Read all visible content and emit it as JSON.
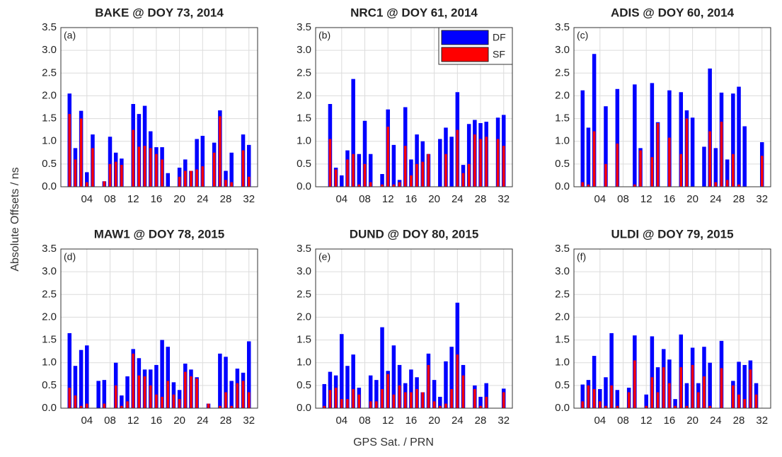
{
  "ylabel": "Absolute Offsets / ns",
  "xlabel": "GPS Sat. / PRN",
  "chart_data": [
    {
      "type": "bar",
      "title": "BAKE @ DOY 73, 2014",
      "annotation": "(a)",
      "x": [
        1,
        2,
        3,
        4,
        5,
        6,
        7,
        8,
        9,
        10,
        11,
        12,
        13,
        14,
        15,
        16,
        17,
        18,
        19,
        20,
        21,
        22,
        23,
        24,
        25,
        26,
        27,
        28,
        29,
        30,
        31,
        32
      ],
      "series": [
        {
          "name": "DF",
          "color": "#0000ff",
          "values": [
            2.05,
            0.85,
            1.67,
            0.32,
            1.15,
            null,
            0.12,
            1.1,
            0.75,
            0.62,
            null,
            1.82,
            1.6,
            1.78,
            1.22,
            0.87,
            0.87,
            0.3,
            null,
            0.42,
            0.6,
            0.35,
            1.05,
            1.12,
            null,
            0.97,
            1.68,
            0.35,
            0.75,
            null,
            1.15,
            0.92
          ]
        },
        {
          "name": "SF",
          "color": "#ff0000",
          "values": [
            1.6,
            0.6,
            1.5,
            0.1,
            0.85,
            null,
            0.12,
            0.5,
            0.55,
            0.48,
            null,
            1.25,
            0.88,
            0.9,
            0.85,
            0.72,
            0.6,
            0.0,
            null,
            0.22,
            0.35,
            0.35,
            0.38,
            0.45,
            null,
            0.75,
            1.55,
            0.15,
            0.1,
            null,
            0.8,
            0.22
          ]
        }
      ],
      "xlim": [
        -0.5,
        33.5
      ],
      "xticks": [
        {
          "value": 4,
          "label": "04"
        },
        {
          "value": 8,
          "label": "08"
        },
        12,
        16,
        20,
        24,
        28,
        32
      ],
      "ylim": [
        0,
        3.5
      ],
      "yticks": [
        {
          "value": 0,
          "label": "0.0"
        },
        0.5,
        {
          "value": 1,
          "label": "1.0"
        },
        1.5,
        {
          "value": 2,
          "label": "2.0"
        },
        2.5,
        {
          "value": 3,
          "label": "3.0"
        },
        3.5
      ],
      "grid": true
    },
    {
      "type": "bar",
      "title": "NRC1 @ DOY 61, 2014",
      "annotation": "(b)",
      "legend": "upper right",
      "x": [
        1,
        2,
        3,
        4,
        5,
        6,
        7,
        8,
        9,
        10,
        11,
        12,
        13,
        14,
        15,
        16,
        17,
        18,
        19,
        20,
        21,
        22,
        23,
        24,
        25,
        26,
        27,
        28,
        29,
        30,
        31,
        32
      ],
      "series": [
        {
          "name": "DF",
          "color": "#0000ff",
          "values": [
            null,
            1.82,
            0.42,
            0.25,
            0.8,
            2.37,
            0.72,
            1.45,
            0.72,
            null,
            0.28,
            1.7,
            0.92,
            0.15,
            1.75,
            0.6,
            1.15,
            1.0,
            0.72,
            null,
            1.05,
            1.3,
            1.1,
            2.08,
            0.48,
            1.38,
            1.47,
            1.4,
            1.43,
            null,
            1.52,
            1.58
          ]
        },
        {
          "name": "SF",
          "color": "#ff0000",
          "values": [
            null,
            1.05,
            0.38,
            0.0,
            0.6,
            0.72,
            0.05,
            0.5,
            0.1,
            null,
            0.05,
            1.32,
            0.05,
            0.1,
            0.9,
            0.25,
            0.5,
            0.55,
            0.72,
            null,
            0.0,
            0.72,
            0.0,
            1.25,
            0.3,
            0.5,
            1.15,
            1.05,
            1.1,
            null,
            1.05,
            0.9
          ]
        }
      ],
      "xlim": [
        -0.5,
        33.5
      ],
      "xticks": [
        {
          "value": 4,
          "label": "04"
        },
        {
          "value": 8,
          "label": "08"
        },
        12,
        16,
        20,
        24,
        28,
        32
      ],
      "ylim": [
        0,
        3.5
      ],
      "yticks": [
        {
          "value": 0,
          "label": "0.0"
        },
        0.5,
        {
          "value": 1,
          "label": "1.0"
        },
        1.5,
        {
          "value": 2,
          "label": "2.0"
        },
        2.5,
        {
          "value": 3,
          "label": "3.0"
        },
        3.5
      ],
      "grid": true
    },
    {
      "type": "bar",
      "title": "ADIS @ DOY 60, 2014",
      "annotation": "(c)",
      "x": [
        1,
        2,
        3,
        4,
        5,
        6,
        7,
        8,
        9,
        10,
        11,
        12,
        13,
        14,
        15,
        16,
        17,
        18,
        19,
        20,
        21,
        22,
        23,
        24,
        25,
        26,
        27,
        28,
        29,
        30,
        31,
        32
      ],
      "series": [
        {
          "name": "DF",
          "color": "#0000ff",
          "values": [
            2.12,
            1.3,
            2.92,
            null,
            1.77,
            null,
            2.15,
            null,
            null,
            2.25,
            0.85,
            null,
            2.28,
            1.42,
            null,
            2.12,
            null,
            2.08,
            1.68,
            1.52,
            null,
            0.88,
            2.6,
            0.85,
            2.07,
            0.6,
            2.05,
            2.2,
            1.33,
            null,
            null,
            0.98
          ]
        },
        {
          "name": "SF",
          "color": "#ff0000",
          "values": [
            0.1,
            0.05,
            1.22,
            null,
            0.5,
            null,
            0.95,
            null,
            null,
            0.05,
            0.8,
            null,
            0.65,
            1.4,
            null,
            1.08,
            null,
            0.72,
            1.5,
            0.0,
            null,
            0.0,
            1.22,
            0.1,
            1.43,
            0.15,
            0.72,
            0.05,
            0.0,
            null,
            null,
            0.68
          ]
        }
      ],
      "xlim": [
        -0.5,
        33.5
      ],
      "xticks": [
        {
          "value": 4,
          "label": "04"
        },
        {
          "value": 8,
          "label": "08"
        },
        12,
        16,
        20,
        24,
        28,
        32
      ],
      "ylim": [
        0,
        3.5
      ],
      "yticks": [
        {
          "value": 0,
          "label": "0.0"
        },
        0.5,
        {
          "value": 1,
          "label": "1.0"
        },
        1.5,
        {
          "value": 2,
          "label": "2.0"
        },
        2.5,
        {
          "value": 3,
          "label": "3.0"
        },
        3.5
      ],
      "grid": true
    },
    {
      "type": "bar",
      "title": "MAW1 @ DOY 78, 2015",
      "annotation": "(d)",
      "x": [
        1,
        2,
        3,
        4,
        5,
        6,
        7,
        8,
        9,
        10,
        11,
        12,
        13,
        14,
        15,
        16,
        17,
        18,
        19,
        20,
        21,
        22,
        23,
        24,
        25,
        26,
        27,
        28,
        29,
        30,
        31,
        32
      ],
      "series": [
        {
          "name": "DF",
          "color": "#0000ff",
          "values": [
            1.65,
            0.93,
            1.28,
            1.38,
            null,
            0.6,
            0.62,
            null,
            1.0,
            0.28,
            0.7,
            1.3,
            1.1,
            0.85,
            0.85,
            0.95,
            1.5,
            1.35,
            0.57,
            0.4,
            0.98,
            0.85,
            0.68,
            null,
            0.1,
            null,
            1.2,
            1.13,
            0.6,
            0.87,
            0.78,
            1.47
          ]
        },
        {
          "name": "SF",
          "color": "#ff0000",
          "values": [
            0.45,
            0.28,
            0.05,
            0.1,
            null,
            0.0,
            0.1,
            null,
            0.5,
            0.05,
            0.15,
            1.2,
            0.72,
            0.7,
            0.5,
            0.3,
            0.25,
            0.6,
            0.3,
            0.2,
            0.8,
            0.7,
            0.65,
            null,
            0.1,
            null,
            0.05,
            0.35,
            0.05,
            0.55,
            0.6,
            0.35
          ]
        }
      ],
      "xlim": [
        -0.5,
        33.5
      ],
      "xticks": [
        {
          "value": 4,
          "label": "04"
        },
        {
          "value": 8,
          "label": "08"
        },
        12,
        16,
        20,
        24,
        28,
        32
      ],
      "ylim": [
        0,
        3.5
      ],
      "yticks": [
        {
          "value": 0,
          "label": "0.0"
        },
        0.5,
        {
          "value": 1,
          "label": "1.0"
        },
        1.5,
        {
          "value": 2,
          "label": "2.0"
        },
        2.5,
        {
          "value": 3,
          "label": "3.0"
        },
        3.5
      ],
      "grid": true
    },
    {
      "type": "bar",
      "title": "DUND @ DOY 80, 2015",
      "annotation": "(e)",
      "x": [
        1,
        2,
        3,
        4,
        5,
        6,
        7,
        8,
        9,
        10,
        11,
        12,
        13,
        14,
        15,
        16,
        17,
        18,
        19,
        20,
        21,
        22,
        23,
        24,
        25,
        26,
        27,
        28,
        29,
        30,
        31,
        32
      ],
      "series": [
        {
          "name": "DF",
          "color": "#0000ff",
          "values": [
            0.53,
            0.8,
            0.72,
            1.63,
            0.93,
            1.18,
            0.45,
            null,
            0.72,
            0.62,
            1.78,
            0.82,
            1.38,
            0.95,
            0.55,
            0.85,
            0.68,
            0.35,
            1.2,
            0.62,
            0.25,
            1.03,
            1.35,
            2.32,
            0.95,
            null,
            0.5,
            0.25,
            0.55,
            null,
            null,
            0.43
          ]
        },
        {
          "name": "SF",
          "color": "#ff0000",
          "values": [
            0.05,
            0.4,
            0.45,
            0.2,
            0.2,
            0.42,
            0.3,
            null,
            0.15,
            0.15,
            0.42,
            0.75,
            0.3,
            0.5,
            0.35,
            0.35,
            0.42,
            0.35,
            0.95,
            0.15,
            0.05,
            0.1,
            0.42,
            1.18,
            0.72,
            null,
            0.42,
            0.05,
            0.25,
            null,
            null,
            0.35
          ]
        }
      ],
      "xlim": [
        -0.5,
        33.5
      ],
      "xticks": [
        {
          "value": 4,
          "label": "04"
        },
        {
          "value": 8,
          "label": "08"
        },
        12,
        16,
        20,
        24,
        28,
        32
      ],
      "ylim": [
        0,
        3.5
      ],
      "yticks": [
        {
          "value": 0,
          "label": "0.0"
        },
        0.5,
        {
          "value": 1,
          "label": "1.0"
        },
        1.5,
        {
          "value": 2,
          "label": "2.0"
        },
        2.5,
        {
          "value": 3,
          "label": "3.0"
        },
        3.5
      ],
      "grid": true
    },
    {
      "type": "bar",
      "title": "ULDI @ DOY 79, 2015",
      "annotation": "(f)",
      "x": [
        1,
        2,
        3,
        4,
        5,
        6,
        7,
        8,
        9,
        10,
        11,
        12,
        13,
        14,
        15,
        16,
        17,
        18,
        19,
        20,
        21,
        22,
        23,
        24,
        25,
        26,
        27,
        28,
        29,
        30,
        31,
        32
      ],
      "series": [
        {
          "name": "DF",
          "color": "#0000ff",
          "values": [
            0.52,
            0.62,
            1.15,
            0.42,
            0.68,
            1.65,
            0.4,
            null,
            0.45,
            1.6,
            null,
            0.3,
            1.58,
            0.9,
            1.3,
            1.07,
            0.2,
            1.62,
            0.55,
            1.33,
            0.55,
            1.35,
            1.0,
            null,
            1.48,
            null,
            0.6,
            1.02,
            0.95,
            1.05,
            0.55,
            null
          ]
        },
        {
          "name": "SF",
          "color": "#ff0000",
          "values": [
            0.15,
            0.5,
            0.42,
            0.15,
            0.05,
            0.5,
            0.05,
            null,
            0.35,
            1.05,
            null,
            0.05,
            0.68,
            0.35,
            0.9,
            0.55,
            0.05,
            0.9,
            0.05,
            0.95,
            0.35,
            0.7,
            0.05,
            null,
            0.88,
            null,
            0.5,
            0.3,
            0.2,
            0.85,
            0.3,
            null
          ]
        }
      ],
      "xlim": [
        -0.5,
        33.5
      ],
      "xticks": [
        {
          "value": 4,
          "label": "04"
        },
        {
          "value": 8,
          "label": "08"
        },
        12,
        16,
        20,
        24,
        28,
        32
      ],
      "ylim": [
        0,
        3.5
      ],
      "yticks": [
        {
          "value": 0,
          "label": "0.0"
        },
        0.5,
        {
          "value": 1,
          "label": "1.0"
        },
        1.5,
        {
          "value": 2,
          "label": "2.0"
        },
        2.5,
        {
          "value": 3,
          "label": "3.0"
        },
        3.5
      ],
      "grid": true
    }
  ]
}
